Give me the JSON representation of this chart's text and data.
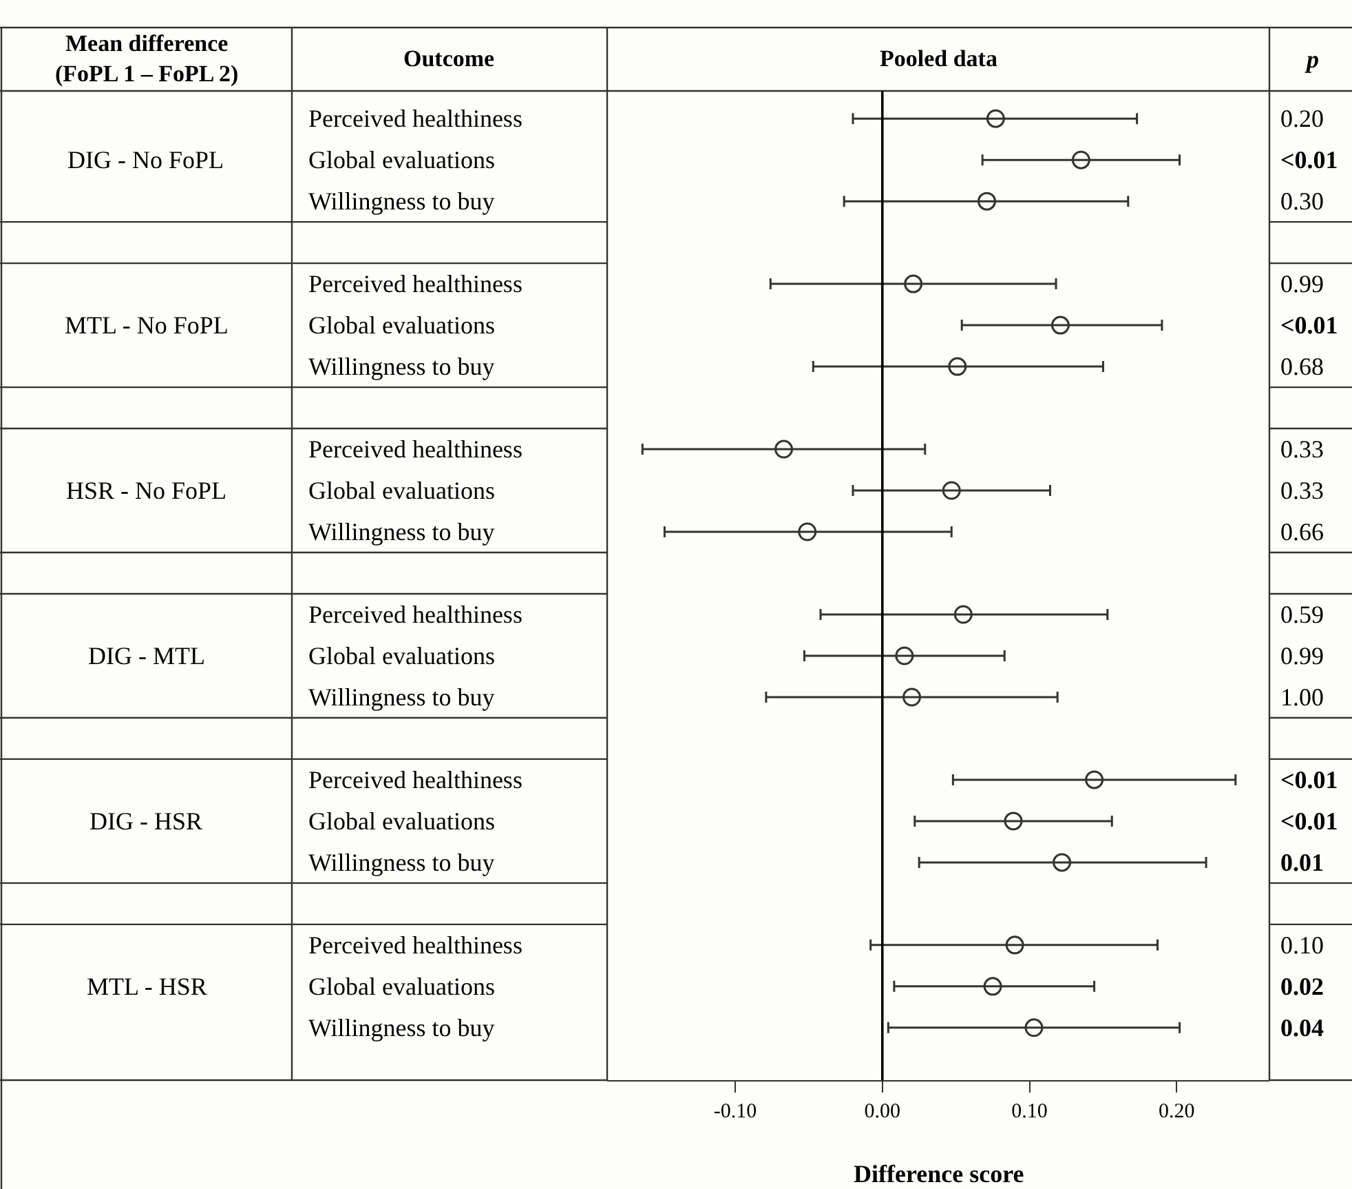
{
  "chart_data": {
    "type": "scatter",
    "title": "Pooled data",
    "ylabel": "Outcome",
    "xlabel": "Difference score",
    "annotations": [
      "Mean difference\n(FoPL 1 – FoPL 2)",
      "p",
      "DIG - No FoPL",
      "MTL - No FoPL",
      "HSR - No FoPL",
      "DIG - MTL",
      "DIG - HSR",
      "MTL - HSR",
      "0.20",
      "<0.01",
      "0.30",
      "0.99",
      "<0.01",
      "0.68",
      "0.33",
      "0.33",
      "0.66",
      "0.59",
      "0.99",
      "1.00",
      "<0.01",
      "<0.01",
      "0.01",
      "0.10",
      "0.02",
      "0.04"
    ],
    "categories": [
      "Perceived healthiness",
      "Global evaluations",
      "Willingness to buy",
      null,
      "Perceived healthiness",
      "Global evaluations",
      "Willingness to buy",
      null,
      "Perceived healthiness",
      "Global evaluations",
      "Willingness to buy",
      null,
      "Perceived healthiness",
      "Global evaluations",
      "Willingness to buy",
      null,
      "Perceived healthiness",
      "Global evaluations",
      "Willingness to buy",
      null,
      "Perceived healthiness",
      "Global evaluations",
      "Willingness to buy"
    ],
    "series": [
      {
        "color": "#333333",
        "values": [
          0.077,
          0.135,
          0.071,
          null,
          0.021,
          0.121,
          0.051,
          null,
          -0.067,
          0.047,
          -0.051,
          null,
          0.055,
          0.015,
          0.02,
          null,
          0.144,
          0.089,
          0.122,
          null,
          0.09,
          0.075,
          0.103
        ],
        "errors": [
          [
            -0.02,
            0.173
          ],
          [
            0.068,
            0.202
          ],
          [
            -0.026,
            0.167
          ],
          null,
          [
            -0.076,
            0.118
          ],
          [
            0.054,
            0.19
          ],
          [
            -0.047,
            0.15
          ],
          null,
          [
            -0.163,
            0.029
          ],
          [
            -0.02,
            0.114
          ],
          [
            -0.148,
            0.047
          ],
          null,
          [
            -0.042,
            0.153
          ],
          [
            -0.053,
            0.083
          ],
          [
            -0.079,
            0.119
          ],
          null,
          [
            0.048,
            0.24
          ],
          [
            0.022,
            0.156
          ],
          [
            0.025,
            0.22
          ],
          null,
          [
            -0.008,
            0.187
          ],
          [
            0.008,
            0.144
          ],
          [
            0.004,
            0.202
          ]
        ]
      }
    ],
    "orientation": "horizontal",
    "xlim": [
      -0.187,
      0.263
    ],
    "xticks": [
      {
        "value": -0.1,
        "label": "-0.10"
      },
      {
        "value": 0,
        "label": "0.00"
      },
      {
        "value": 0.1,
        "label": "0.10"
      },
      {
        "value": 0.2,
        "label": "0.20"
      }
    ],
    "ref_lines": [
      {
        "axis": "x",
        "value": 0,
        "color": "#000000"
      }
    ],
    "marker": "circle",
    "grid": false
  }
}
